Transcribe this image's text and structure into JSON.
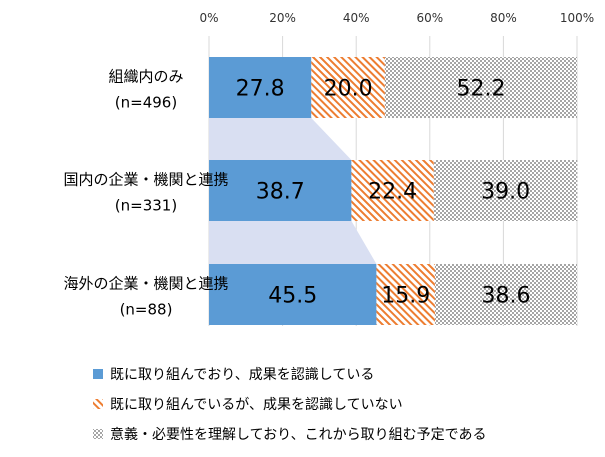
{
  "chart_data": {
    "type": "bar",
    "orientation": "horizontal",
    "stacked": "percent",
    "xlim": [
      0,
      100
    ],
    "x_ticks": [
      "0%",
      "20%",
      "40%",
      "60%",
      "80%",
      "100%"
    ],
    "x_tick_values": [
      0,
      20,
      40,
      60,
      80,
      100
    ],
    "categories": [
      {
        "label": "組織内のみ",
        "n": "(n=496)"
      },
      {
        "label": "国内の企業・機関と連携",
        "n": "(n=331)"
      },
      {
        "label": "海外の企業・機関と連携",
        "n": "(n=88)"
      }
    ],
    "series": [
      {
        "name": "既に取り組んでおり、成果を認識している",
        "values": [
          27.8,
          38.7,
          45.5
        ],
        "color": "#5B9BD5",
        "fill": "solid"
      },
      {
        "name": "既に取り組んでいるが、成果を認識していない",
        "values": [
          20.0,
          22.4,
          15.9
        ],
        "color": "#ED7D31",
        "fill": "diagonal-hatch"
      },
      {
        "name": "意義・必要性を理解しており、これから取り組む予定である",
        "values": [
          52.2,
          39.0,
          38.6
        ],
        "color": "#A5A5A5",
        "fill": "dotted-hatch"
      }
    ],
    "series_lines": true,
    "series_line_color": "#D9DFF2",
    "legend_position": "bottom",
    "grid": true
  }
}
